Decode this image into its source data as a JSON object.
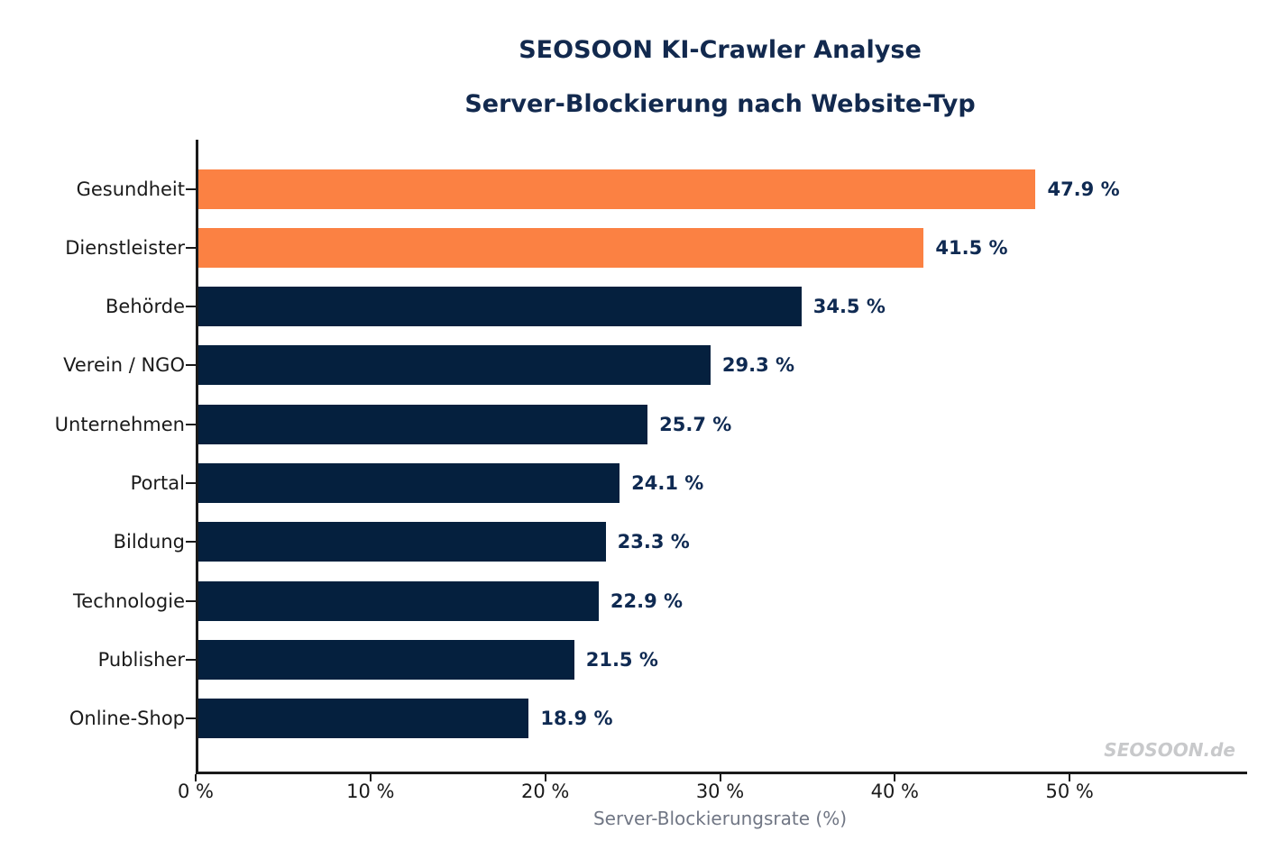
{
  "header": {
    "title_line1": "SEOSOON KI-Crawler Analyse",
    "title_line2": "Server-Blockierung nach Website-Typ"
  },
  "watermark": "SEOSOON.de",
  "colors": {
    "highlight_orange": "#fb8143",
    "bar_navy": "#05203e",
    "text_navy": "#0f2a52",
    "title_navy": "#12294e",
    "axis_line": "#1a1a1a",
    "tick_label": "#1a1a1a",
    "xlabel_gray": "#707684",
    "watermark_gray": "#c8c9cb",
    "background": "#ffffff"
  },
  "chart_data": {
    "type": "bar",
    "orientation": "horizontal",
    "title": "SEOSOON KI-Crawler Analyse",
    "subtitle": "Server-Blockierung nach Website-Typ",
    "xlabel": "Server-Blockierungsrate (%)",
    "ylabel": "",
    "xlim": [
      0,
      60
    ],
    "grid": false,
    "legend": false,
    "categories": [
      "Gesundheit",
      "Dienstleister",
      "Behörde",
      "Verein / NGO",
      "Unternehmen",
      "Portal",
      "Bildung",
      "Technologie",
      "Publisher",
      "Online-Shop"
    ],
    "values": [
      47.9,
      41.5,
      34.5,
      29.3,
      25.7,
      24.1,
      23.3,
      22.9,
      21.5,
      18.9
    ],
    "value_labels": [
      "47.9 %",
      "41.5 %",
      "34.5 %",
      "29.3 %",
      "25.7 %",
      "24.1 %",
      "23.3 %",
      "22.9 %",
      "21.5 %",
      "18.9 %"
    ],
    "bar_colors": [
      "#fb8143",
      "#fb8143",
      "#05203e",
      "#05203e",
      "#05203e",
      "#05203e",
      "#05203e",
      "#05203e",
      "#05203e",
      "#05203e"
    ],
    "xticks": [
      {
        "value": 0,
        "label": "0 %"
      },
      {
        "value": 10,
        "label": "10 %"
      },
      {
        "value": 20,
        "label": "20 %"
      },
      {
        "value": 30,
        "label": "30 %"
      },
      {
        "value": 40,
        "label": "40 %"
      },
      {
        "value": 50,
        "label": "50 %"
      }
    ]
  }
}
